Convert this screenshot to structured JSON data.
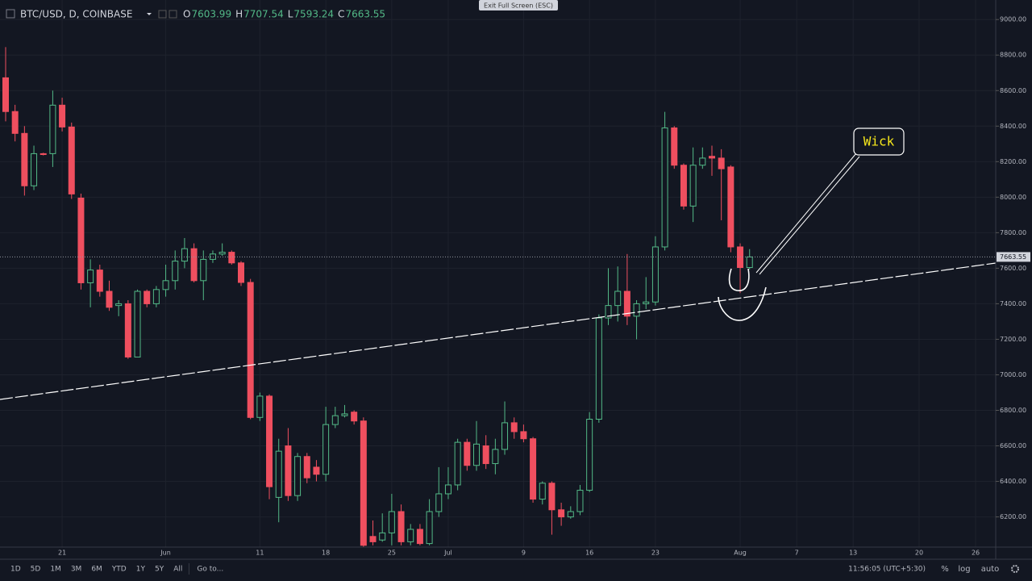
{
  "top_bar": {
    "exit": "Exit Full Screen (ESC)"
  },
  "legend": {
    "symbol": "BTC/USD, D, COINBASE",
    "open_label": "O",
    "high_label": "H",
    "low_label": "L",
    "close_label": "C"
  },
  "chart_data": {
    "type": "candlestick",
    "categories": [
      null,
      null,
      null,
      null,
      null,
      null,
      "21",
      null,
      null,
      null,
      null,
      null,
      null,
      null,
      null,
      null,
      null,
      "Jun",
      null,
      null,
      null,
      null,
      null,
      null,
      null,
      null,
      null,
      "11",
      null,
      null,
      null,
      null,
      null,
      null,
      "18",
      null,
      null,
      null,
      null,
      null,
      null,
      "25",
      null,
      null,
      null,
      null,
      null,
      "Jul",
      null,
      null,
      null,
      null,
      null,
      null,
      null,
      "9",
      null,
      null,
      null,
      null,
      null,
      null,
      "16",
      null,
      null,
      null,
      null,
      null,
      null,
      "23",
      null,
      null,
      null,
      null,
      null,
      null,
      null,
      null,
      "Aug",
      null,
      null,
      null,
      null,
      null,
      "7",
      null,
      null,
      null,
      null,
      null,
      "13",
      null,
      null,
      null,
      null,
      null,
      null,
      "20",
      null,
      null,
      null,
      null,
      null,
      "26",
      null,
      null
    ],
    "open": [
      8672,
      8482,
      8359,
      8064,
      8245,
      8245,
      8518,
      8395,
      7995,
      7518,
      7590,
      7470,
      7390,
      7400,
      7100,
      7470,
      7400,
      7480,
      7530,
      7640,
      7710,
      7530,
      7650,
      7680,
      7690,
      7630,
      7520,
      6760,
      6880,
      6310,
      6600,
      6320,
      6540,
      6480,
      6440,
      6720,
      6770,
      6790,
      6740,
      6090,
      6070,
      6110,
      6230,
      6060,
      6130,
      6050,
      6230,
      6330,
      6380,
      6620,
      6490,
      6600,
      6500,
      6580,
      6730,
      6680,
      6640,
      6300,
      6390,
      6240,
      6200,
      6230,
      6350,
      6750,
      7320,
      7390,
      7470,
      7330,
      7400,
      7410,
      7720,
      8390,
      8180,
      7950,
      8180,
      8230,
      8220,
      8170,
      7720,
      7603.99,
      null,
      null,
      null,
      null,
      null,
      null,
      null,
      null,
      null,
      null,
      null,
      null,
      null,
      null,
      null,
      null,
      null,
      null,
      null,
      null,
      null,
      null,
      null,
      null,
      null,
      null
    ],
    "high": [
      8845,
      8520,
      8400,
      8290,
      8250,
      8600,
      8560,
      8420,
      8020,
      7650,
      7620,
      7530,
      7420,
      7420,
      7480,
      7480,
      7500,
      7620,
      7700,
      7770,
      7740,
      7700,
      7700,
      7740,
      7700,
      7640,
      7540,
      6900,
      6890,
      6640,
      6700,
      6560,
      6560,
      6520,
      6820,
      6820,
      6830,
      6800,
      6760,
      6180,
      6220,
      6330,
      6270,
      6160,
      6160,
      6300,
      6480,
      6480,
      6640,
      6640,
      6740,
      6660,
      6640,
      6850,
      6760,
      6720,
      6650,
      6400,
      6400,
      6280,
      6260,
      6380,
      6790,
      7340,
      7600,
      7610,
      7680,
      7420,
      7550,
      7780,
      8480,
      8400,
      8190,
      8280,
      8280,
      8290,
      8270,
      8180,
      7740,
      7707.54,
      null,
      null,
      null,
      null,
      null,
      null,
      null,
      null,
      null,
      null,
      null,
      null,
      null,
      null,
      null,
      null,
      null,
      null,
      null,
      null,
      null,
      null,
      null,
      null,
      null,
      null
    ],
    "low": [
      8427,
      8314,
      8009,
      8040,
      8235,
      8170,
      8370,
      7990,
      7480,
      7380,
      7440,
      7360,
      7330,
      7090,
      7100,
      7380,
      7380,
      7440,
      7480,
      7600,
      7520,
      7420,
      7630,
      7670,
      7620,
      7500,
      6750,
      6740,
      6300,
      6170,
      6290,
      6290,
      6390,
      6400,
      6400,
      6700,
      6760,
      6720,
      6030,
      6040,
      6060,
      6040,
      6040,
      6040,
      6040,
      6040,
      6200,
      6300,
      6350,
      6460,
      6460,
      6470,
      6440,
      6550,
      6640,
      6620,
      6280,
      6270,
      6100,
      6150,
      6190,
      6210,
      6340,
      6730,
      7280,
      7300,
      7280,
      7200,
      7370,
      7390,
      7700,
      8160,
      7930,
      7860,
      8160,
      8120,
      7870,
      7690,
      7460,
      7593.24,
      null,
      null,
      null,
      null,
      null,
      null,
      null,
      null,
      null,
      null,
      null,
      null,
      null,
      null,
      null,
      null,
      null,
      null,
      null,
      null,
      null,
      null,
      null,
      null,
      null,
      null
    ],
    "close": [
      8482,
      8359,
      8064,
      8245,
      8240,
      8518,
      8395,
      8018,
      7518,
      7590,
      7470,
      7380,
      7400,
      7100,
      7470,
      7400,
      7480,
      7530,
      7640,
      7710,
      7530,
      7650,
      7680,
      7690,
      7630,
      7520,
      6760,
      6880,
      6370,
      6570,
      6320,
      6540,
      6420,
      6440,
      6720,
      6770,
      6780,
      6740,
      6040,
      6060,
      6110,
      6230,
      6060,
      6130,
      6050,
      6230,
      6330,
      6380,
      6620,
      6490,
      6610,
      6500,
      6580,
      6730,
      6680,
      6640,
      6300,
      6390,
      6240,
      6200,
      6230,
      6350,
      6750,
      7320,
      7390,
      7470,
      7330,
      7400,
      7410,
      7720,
      8390,
      8180,
      7950,
      8180,
      8220,
      8220,
      8160,
      7720,
      7603.99,
      7663.55,
      null,
      null,
      null,
      null,
      null,
      null,
      null,
      null,
      null,
      null,
      null,
      null,
      null,
      null,
      null,
      null,
      null,
      null,
      null,
      null,
      null,
      null,
      null,
      null,
      null,
      null
    ],
    "up_color": "#53b987",
    "down_color": "#ef4f5f",
    "ylim": [
      6030,
      9110
    ],
    "yticks": [
      {
        "value": 6200,
        "label": "6200.00"
      },
      {
        "value": 6400,
        "label": "6400.00"
      },
      {
        "value": 6600,
        "label": "6600.00"
      },
      {
        "value": 6800,
        "label": "6800.00"
      },
      {
        "value": 7000,
        "label": "7000.00"
      },
      {
        "value": 7200,
        "label": "7200.00"
      },
      {
        "value": 7400,
        "label": "7400.00"
      },
      {
        "value": 7600,
        "label": "7600.00"
      },
      {
        "value": 7800,
        "label": "7800.00"
      },
      {
        "value": 8000,
        "label": "8000.00"
      },
      {
        "value": 8200,
        "label": "8200.00"
      },
      {
        "value": 8400,
        "label": "8400.00"
      },
      {
        "value": 8600,
        "label": "8600.00"
      },
      {
        "value": 8800,
        "label": "8800.00"
      },
      {
        "value": 9000,
        "label": "9000.00"
      }
    ],
    "grid": true,
    "last_price_line": true,
    "annotation": "Wick"
  },
  "toolbar": {
    "ranges": [
      "1D",
      "5D",
      "1M",
      "3M",
      "6M",
      "YTD",
      "1Y",
      "5Y",
      "All"
    ],
    "goto": "Go to...",
    "time": "11:56:05 (UTC+5:30)",
    "options": [
      "%",
      "log",
      "auto"
    ]
  }
}
